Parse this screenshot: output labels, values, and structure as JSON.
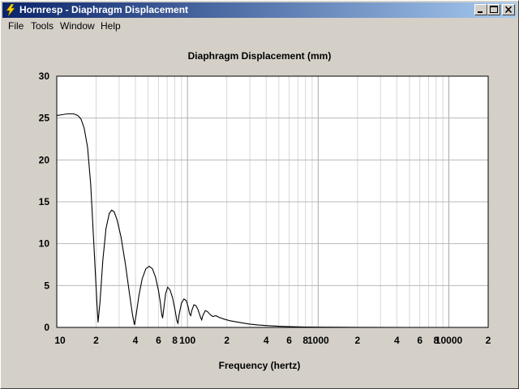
{
  "window": {
    "title": "Hornresp - Diaphragm Displacement"
  },
  "menu": [
    {
      "label": "File"
    },
    {
      "label": "Tools"
    },
    {
      "label": "Window"
    },
    {
      "label": "Help"
    }
  ],
  "icons": {
    "app": "lightning-icon",
    "minimize": "minimize-icon",
    "maximize": "maximize-icon",
    "close": "close-icon"
  },
  "colors": {
    "titlebar_start": "#0a246a",
    "titlebar_end": "#a6caf0",
    "plot_background": "#ffffff",
    "grid": "#c0c0c0",
    "curve": "#000000"
  },
  "chart_data": {
    "type": "line",
    "title": "Diaphragm Displacement (mm)",
    "xlabel": "Frequency (hertz)",
    "ylabel": "",
    "xscale": "log",
    "xlim": [
      10,
      20000
    ],
    "ylim": [
      0,
      30
    ],
    "yticks": [
      "0",
      "5",
      "10",
      "15",
      "20",
      "25",
      "30"
    ],
    "xtick_labels": [
      {
        "x": 10,
        "label": "10"
      },
      {
        "x": 20,
        "label": "2"
      },
      {
        "x": 40,
        "label": "4"
      },
      {
        "x": 60,
        "label": "6"
      },
      {
        "x": 80,
        "label": "8"
      },
      {
        "x": 100,
        "label": "100"
      },
      {
        "x": 200,
        "label": "2"
      },
      {
        "x": 400,
        "label": "4"
      },
      {
        "x": 600,
        "label": "6"
      },
      {
        "x": 800,
        "label": "8"
      },
      {
        "x": 1000,
        "label": "1000"
      },
      {
        "x": 2000,
        "label": "2"
      },
      {
        "x": 4000,
        "label": "4"
      },
      {
        "x": 6000,
        "label": "6"
      },
      {
        "x": 8000,
        "label": "8"
      },
      {
        "x": 10000,
        "label": "10000"
      },
      {
        "x": 20000,
        "label": "2"
      }
    ],
    "grid": true,
    "series": [
      {
        "points": [
          [
            10,
            25.3
          ],
          [
            11,
            25.4
          ],
          [
            12,
            25.5
          ],
          [
            13.5,
            25.5
          ],
          [
            14.5,
            25.3
          ],
          [
            15.3,
            24.9
          ],
          [
            16.2,
            23.8
          ],
          [
            17.2,
            21.5
          ],
          [
            18.2,
            17.0
          ],
          [
            19.2,
            10.0
          ],
          [
            20.2,
            3.5
          ],
          [
            20.7,
            0.6
          ],
          [
            21.4,
            3.0
          ],
          [
            22.5,
            8.0
          ],
          [
            23.8,
            11.8
          ],
          [
            25.2,
            13.6
          ],
          [
            26.3,
            14.0
          ],
          [
            27.5,
            13.8
          ],
          [
            29.0,
            12.8
          ],
          [
            31.0,
            10.8
          ],
          [
            33.5,
            7.6
          ],
          [
            36.0,
            4.0
          ],
          [
            38.0,
            1.5
          ],
          [
            39.3,
            0.3
          ],
          [
            40.5,
            1.5
          ],
          [
            42.5,
            3.8
          ],
          [
            45.0,
            5.8
          ],
          [
            48.0,
            7.0
          ],
          [
            51.0,
            7.3
          ],
          [
            54.0,
            7.0
          ],
          [
            57.0,
            6.0
          ],
          [
            60.0,
            4.4
          ],
          [
            62.0,
            3.0
          ],
          [
            63.5,
            1.6
          ],
          [
            64.5,
            1.1
          ],
          [
            65.8,
            2.2
          ],
          [
            68.0,
            4.0
          ],
          [
            70.5,
            4.8
          ],
          [
            73.5,
            4.5
          ],
          [
            77.0,
            3.5
          ],
          [
            80.5,
            2.0
          ],
          [
            83.0,
            0.8
          ],
          [
            84.5,
            0.5
          ],
          [
            86.5,
            1.6
          ],
          [
            90.0,
            2.9
          ],
          [
            94.0,
            3.4
          ],
          [
            98.0,
            3.2
          ],
          [
            101.0,
            2.5
          ],
          [
            104.0,
            1.6
          ],
          [
            106.0,
            1.4
          ],
          [
            108.0,
            2.0
          ],
          [
            112.0,
            2.7
          ],
          [
            116.0,
            2.6
          ],
          [
            120.0,
            2.2
          ],
          [
            126.0,
            1.2
          ],
          [
            128.5,
            0.9
          ],
          [
            131.0,
            1.4
          ],
          [
            137.0,
            2.0
          ],
          [
            142.0,
            1.9
          ],
          [
            150.0,
            1.5
          ],
          [
            157.0,
            1.3
          ],
          [
            165.0,
            1.4
          ],
          [
            175.0,
            1.2
          ],
          [
            190.0,
            1.0
          ],
          [
            210.0,
            0.8
          ],
          [
            230.0,
            0.7
          ],
          [
            260.0,
            0.55
          ],
          [
            300.0,
            0.4
          ],
          [
            350.0,
            0.28
          ],
          [
            420.0,
            0.2
          ],
          [
            500.0,
            0.14
          ],
          [
            600.0,
            0.1
          ],
          [
            700.0,
            0.07
          ],
          [
            800.0,
            0.05
          ],
          [
            1000.0,
            0.03
          ],
          [
            1500.0,
            0.015
          ],
          [
            2000.0,
            0.01
          ],
          [
            5000.0,
            0.004
          ],
          [
            10000.0,
            0.002
          ],
          [
            20000.0,
            0.001
          ]
        ]
      }
    ]
  }
}
